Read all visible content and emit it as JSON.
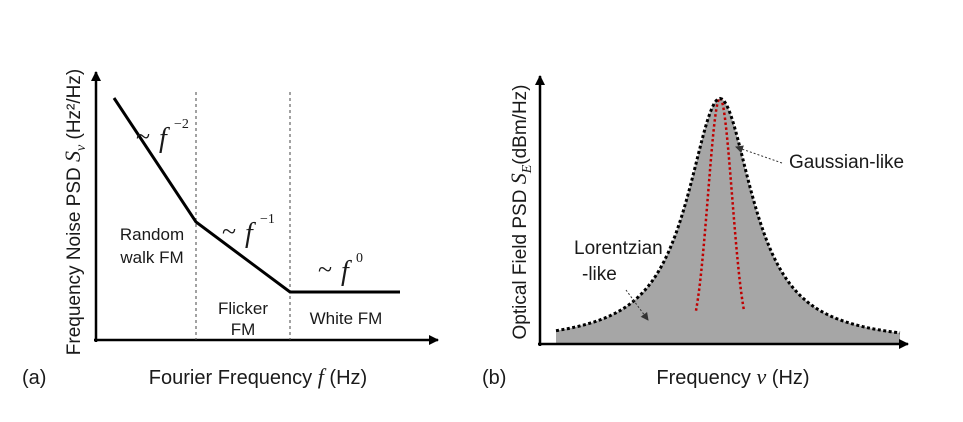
{
  "panel_a": {
    "tag": "(a)",
    "x_axis_label": "Fourier Frequency ",
    "x_axis_symbol": "f",
    "x_axis_unit": " (Hz)",
    "y_axis_label": "Frequency Noise PSD ",
    "y_axis_symbol": "S",
    "y_axis_subscript": "ν",
    "y_axis_unit": " (Hz²/Hz)",
    "regions": {
      "random_walk_line1": "Random",
      "random_walk_line2": "walk FM",
      "flicker_line1": "Flicker",
      "flicker_line2": "FM",
      "white": "White FM"
    },
    "slopes": {
      "approx": "~",
      "f": "f",
      "exp_random_walk": "−2",
      "exp_flicker": "−1",
      "exp_white": "0"
    }
  },
  "panel_b": {
    "tag": "(b)",
    "x_axis_label": "Frequency ",
    "x_axis_symbol": "ν",
    "x_axis_unit": " (Hz)",
    "y_axis_label": "Optical Field PSD ",
    "y_axis_symbol": "S",
    "y_axis_subscript": "E",
    "y_axis_unit": "(dBm/Hz)",
    "gaussian_label": "Gaussian-like",
    "lorentzian_line1": "Lorentzian",
    "lorentzian_line2": "-like"
  },
  "colors": {
    "axis": "#000000",
    "fill": "#a6a6a6",
    "gaussian": "#c00000",
    "lorentzian": "#000000"
  }
}
